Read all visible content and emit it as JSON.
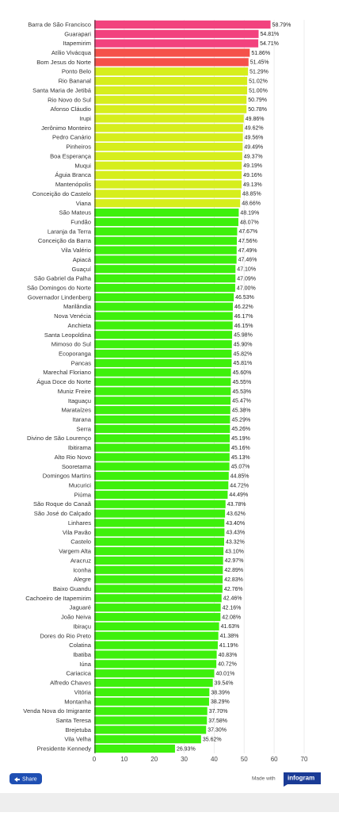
{
  "chart_data": {
    "type": "bar",
    "orientation": "horizontal",
    "categories": [
      "Barra de São Francisco",
      "Guarapari",
      "Itapemirim",
      "Atílio Vivácqua",
      "Bom Jesus do Norte",
      "Ponto Belo",
      "Rio Bananal",
      "Santa Maria de Jetibá",
      "Rio Novo do Sul",
      "Afonso Cláudio",
      "Irupi",
      "Jerônimo Monteiro",
      "Pedro Canário",
      "Pinheiros",
      "Boa Esperança",
      "Muqui",
      "Águia Branca",
      "Mantenópolis",
      "Conceição do Castelo",
      "Viana",
      "São Mateus",
      "Fundão",
      "Laranja da Terra",
      "Conceição da Barra",
      "Vila Valério",
      "Apiacá",
      "Guaçuí",
      "São Gabriel da Palha",
      "São Domingos do Norte",
      "Governador Lindenberg",
      "Marilândia",
      "Nova Venécia",
      "Anchieta",
      "Santa Leopoldina",
      "Mimoso do Sul",
      "Ecoporanga",
      "Pancas",
      "Marechal Floriano",
      "Água Doce do Norte",
      "Muniz Freire",
      "Itaguaçu",
      "Marataízes",
      "Itarana",
      "Serra",
      "Divino de São Lourenço",
      "Ibitirama",
      "Alto Rio Novo",
      "Sooretama",
      "Domingos Martins",
      "Mucurici",
      "Piúma",
      "São Roque do Canaã",
      "São José do Calçado",
      "Linhares",
      "Vila Pavão",
      "Castelo",
      "Vargem Alta",
      "Aracruz",
      "Iconha",
      "Alegre",
      "Baixo Guandu",
      "Cachoeiro de Itapemirim",
      "Jaguaré",
      "João Neiva",
      "Ibiraçu",
      "Dores do Rio Preto",
      "Colatina",
      "Ibatiba",
      "Iúna",
      "Cariacica",
      "Alfredo Chaves",
      "Vitória",
      "Montanha",
      "Venda Nova do Imigrante",
      "Santa Teresa",
      "Brejetuba",
      "Vila Velha",
      "Presidente Kennedy"
    ],
    "values": [
      58.79,
      54.81,
      54.71,
      51.86,
      51.45,
      51.29,
      51.02,
      51.0,
      50.79,
      50.78,
      49.86,
      49.62,
      49.56,
      49.49,
      49.37,
      49.19,
      49.16,
      49.13,
      48.85,
      48.66,
      48.19,
      48.07,
      47.67,
      47.56,
      47.49,
      47.46,
      47.1,
      47.09,
      47.0,
      46.53,
      46.22,
      46.17,
      46.15,
      45.98,
      45.9,
      45.82,
      45.81,
      45.6,
      45.55,
      45.53,
      45.47,
      45.38,
      45.29,
      45.26,
      45.19,
      45.16,
      45.13,
      45.07,
      44.85,
      44.72,
      44.49,
      43.78,
      43.62,
      43.4,
      43.43,
      43.32,
      43.1,
      42.97,
      42.89,
      42.83,
      42.76,
      42.46,
      42.16,
      42.08,
      41.63,
      41.38,
      41.19,
      40.83,
      40.72,
      40.01,
      39.54,
      38.39,
      38.29,
      37.7,
      37.58,
      37.3,
      35.62,
      26.93
    ],
    "value_labels": [
      "58.79%",
      "54.81%",
      "54.71%",
      "51.86%",
      "51.45%",
      "51.29%",
      "51.02%",
      "51.00%",
      "50.79%",
      "50.78%",
      "49.86%",
      "49.62%",
      "49.56%",
      "49.49%",
      "49.37%",
      "49.19%",
      "49.16%",
      "49.13%",
      "48.85%",
      "48.66%",
      "48.19%",
      "48.07%",
      "47.67%",
      "47.56%",
      "47.49%",
      "47.46%",
      "47.10%",
      "47.09%",
      "47.00%",
      "46.53%",
      "46.22%",
      "46.17%",
      "46.15%",
      "45.98%",
      "45.90%",
      "45.82%",
      "45.81%",
      "45.60%",
      "45.55%",
      "45.53%",
      "45.47%",
      "45.38%",
      "45.29%",
      "45.26%",
      "45.19%",
      "45.16%",
      "45.13%",
      "45.07%",
      "44.85%",
      "44.72%",
      "44.49%",
      "43.78%",
      "43.62%",
      "43.40%",
      "43.43%",
      "43.32%",
      "43.10%",
      "42.97%",
      "42.89%",
      "42.83%",
      "42.76%",
      "42.46%",
      "42.16%",
      "42.08%",
      "41.63%",
      "41.38%",
      "41.19%",
      "40.83%",
      "40.72%",
      "40.01%",
      "39.54%",
      "38.39%",
      "38.29%",
      "37.70%",
      "37.58%",
      "37.30%",
      "35.62%",
      "26.93%"
    ],
    "colors": [
      "#f2427e",
      "#f2427e",
      "#f2427e",
      "#f5514a",
      "#f5514a",
      "#d6ee1c",
      "#d6ee1c",
      "#d6ee1c",
      "#d6ee1c",
      "#d6ee1c",
      "#d6ee1c",
      "#d6ee1c",
      "#d6ee1c",
      "#d6ee1c",
      "#d6ee1c",
      "#d6ee1c",
      "#d6ee1c",
      "#d6ee1c",
      "#d6ee1c",
      "#d6ee1c",
      "#3ef00c",
      "#3ef00c",
      "#3ef00c",
      "#3ef00c",
      "#3ef00c",
      "#3ef00c",
      "#3ef00c",
      "#3ef00c",
      "#3ef00c",
      "#3ef00c",
      "#3ef00c",
      "#3ef00c",
      "#3ef00c",
      "#3ef00c",
      "#3ef00c",
      "#3ef00c",
      "#3ef00c",
      "#3ef00c",
      "#3ef00c",
      "#3ef00c",
      "#3ef00c",
      "#3ef00c",
      "#3ef00c",
      "#3ef00c",
      "#3ef00c",
      "#3ef00c",
      "#3ef00c",
      "#3ef00c",
      "#3ef00c",
      "#3ef00c",
      "#3ef00c",
      "#3ef00c",
      "#3ef00c",
      "#3ef00c",
      "#3ef00c",
      "#3ef00c",
      "#3ef00c",
      "#3ef00c",
      "#3ef00c",
      "#3ef00c",
      "#3ef00c",
      "#3ef00c",
      "#3ef00c",
      "#3ef00c",
      "#3ef00c",
      "#3ef00c",
      "#3ef00c",
      "#3ef00c",
      "#3ef00c",
      "#3ef00c",
      "#3ef00c",
      "#3ef00c",
      "#3ef00c",
      "#3ef00c",
      "#3ef00c",
      "#3ef00c",
      "#3ef00c",
      "#3ef00c"
    ],
    "xlim": [
      0,
      70
    ],
    "xticks": [
      0,
      10,
      20,
      30,
      40,
      50,
      60,
      70
    ],
    "grid": true
  },
  "footer": {
    "share": "Share",
    "made_with": "Made with",
    "brand": "infogram"
  }
}
